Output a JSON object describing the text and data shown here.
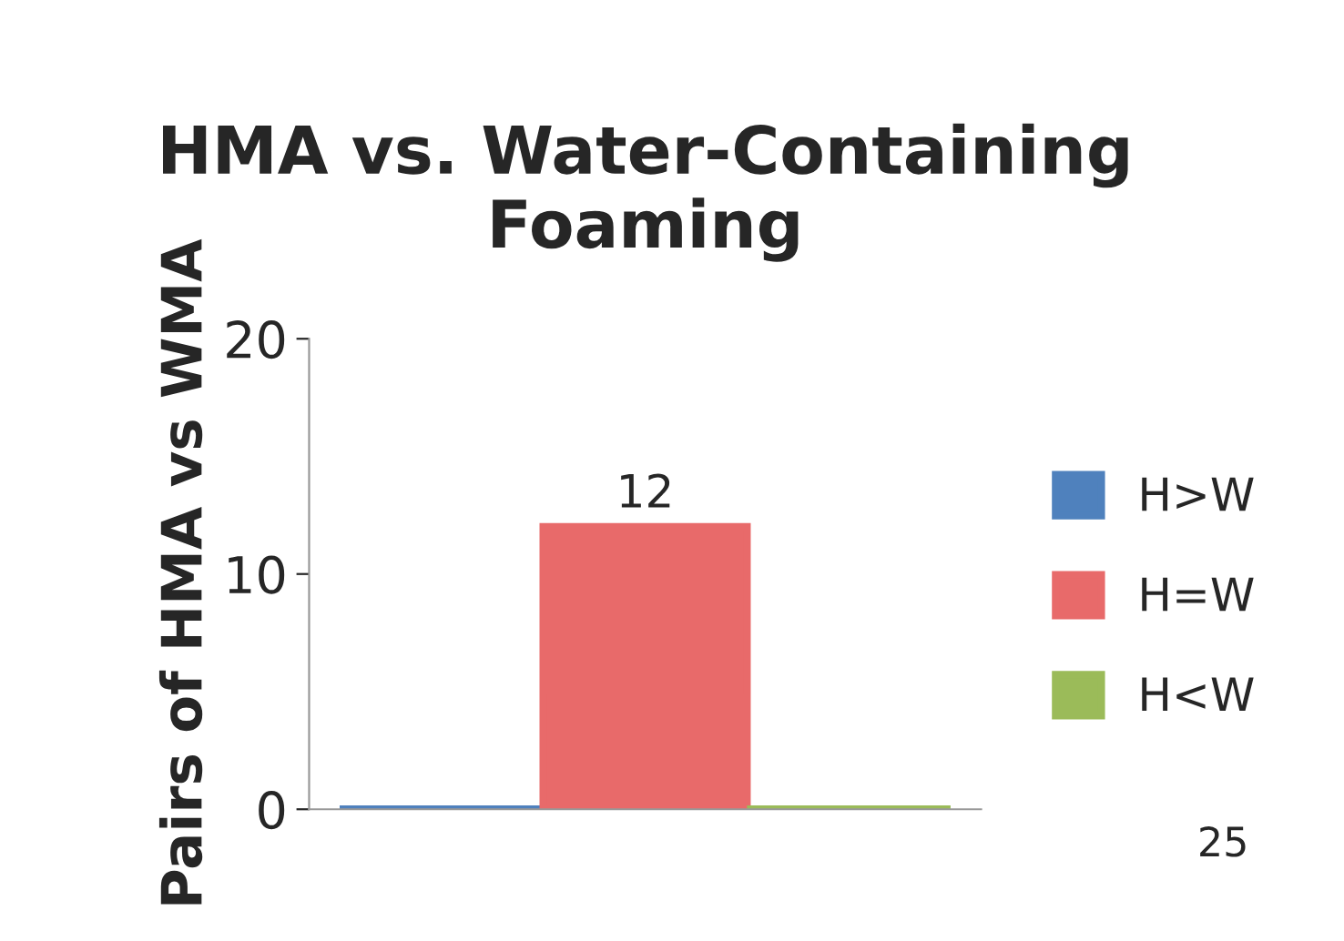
{
  "chart_data": {
    "type": "bar",
    "title": "HMA vs. Water-Containing Foaming",
    "ylabel": "Pairs of HMA vs WMA",
    "categories": [
      null
    ],
    "series": [
      {
        "name": "H>W",
        "color": "#4f81bd",
        "values": [
          0
        ],
        "value_labels": [
          null
        ]
      },
      {
        "name": "H=W",
        "color": "#e86a6a",
        "values": [
          12
        ],
        "value_labels": [
          "12"
        ]
      },
      {
        "name": "H<W",
        "color": "#9bbb59",
        "values": [
          0
        ],
        "value_labels": [
          null
        ]
      }
    ],
    "ylim": [
      0,
      20
    ],
    "yticks": [
      0,
      10,
      20
    ],
    "grid": false,
    "legend": "right",
    "annotations": [
      "25"
    ]
  }
}
